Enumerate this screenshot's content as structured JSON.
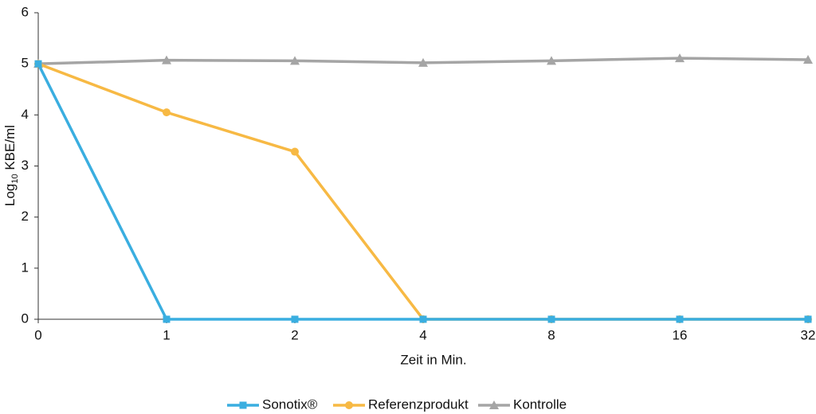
{
  "chart_data": {
    "type": "line",
    "xlabel": "Zeit in Min.",
    "ylabel_parts": [
      "Log",
      "10",
      " KBE/ml"
    ],
    "categories": [
      "0",
      "1",
      "2",
      "4",
      "8",
      "16",
      "32"
    ],
    "series": [
      {
        "name": "Sonotix®",
        "color": "#3aaee0",
        "marker": "square",
        "values": [
          5,
          0,
          0,
          0,
          0,
          0,
          0
        ]
      },
      {
        "name": "Referenzprodukt",
        "color": "#f7b944",
        "marker": "circle",
        "values": [
          5,
          4.05,
          3.28,
          0,
          0,
          0,
          0
        ]
      },
      {
        "name": "Kontrolle",
        "color": "#a5a5a5",
        "marker": "triangle",
        "values": [
          5,
          5.07,
          5.06,
          5.02,
          5.06,
          5.11,
          5.08
        ]
      }
    ],
    "ylim": [
      0,
      6
    ],
    "yticks": [
      0,
      1,
      2,
      3,
      4,
      5,
      6
    ],
    "legend": "bottom"
  }
}
